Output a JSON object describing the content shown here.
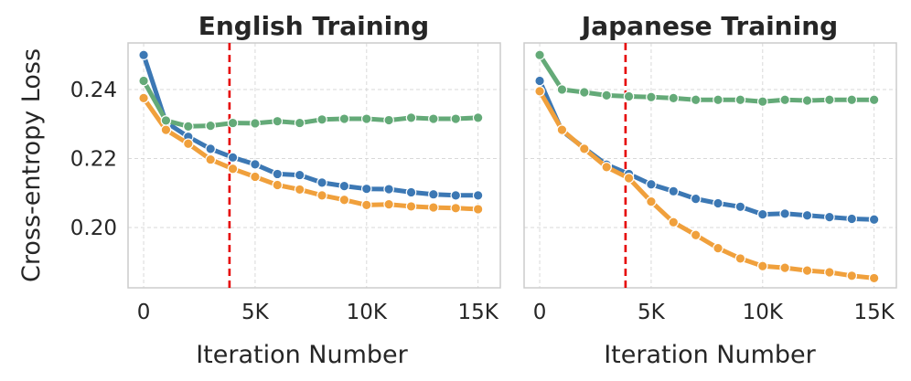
{
  "chart_data": [
    {
      "type": "line",
      "title": "English Training",
      "xlabel": "Iteration Number",
      "ylabel": "Cross-entropy Loss",
      "xlim": [
        -700,
        16000
      ],
      "ylim": [
        0.1825,
        0.2535
      ],
      "xticks": [
        0,
        5000,
        10000,
        15000
      ],
      "xtick_labels": [
        "0",
        "5K",
        "10K",
        "15K"
      ],
      "yticks": [
        0.2,
        0.22,
        0.24
      ],
      "ytick_labels": [
        "0.20",
        "0.22",
        "0.24"
      ],
      "vline_x": 3850,
      "grid": true,
      "series": [
        {
          "color": "#3c78b4",
          "x": [
            0,
            1000,
            2000,
            3000,
            4000,
            5000,
            6000,
            7000,
            8000,
            9000,
            10000,
            11000,
            12000,
            13000,
            14000,
            15000
          ],
          "values": [
            0.25,
            0.2305,
            0.2263,
            0.2228,
            0.2203,
            0.2183,
            0.2155,
            0.2152,
            0.213,
            0.212,
            0.2112,
            0.2111,
            0.2102,
            0.2096,
            0.2093,
            0.2093
          ]
        },
        {
          "color": "#f0a03c",
          "x": [
            0,
            1000,
            2000,
            3000,
            4000,
            5000,
            6000,
            7000,
            8000,
            9000,
            10000,
            11000,
            12000,
            13000,
            14000,
            15000
          ],
          "values": [
            0.2375,
            0.2283,
            0.2243,
            0.2197,
            0.217,
            0.2147,
            0.2123,
            0.211,
            0.2093,
            0.208,
            0.2065,
            0.2067,
            0.2061,
            0.2058,
            0.2056,
            0.2053
          ]
        },
        {
          "color": "#64aa78",
          "x": [
            0,
            1000,
            2000,
            3000,
            4000,
            5000,
            6000,
            7000,
            8000,
            9000,
            10000,
            11000,
            12000,
            13000,
            14000,
            15000
          ],
          "values": [
            0.2425,
            0.231,
            0.2293,
            0.2295,
            0.2303,
            0.2302,
            0.2308,
            0.2303,
            0.2313,
            0.2315,
            0.2315,
            0.2311,
            0.2318,
            0.2315,
            0.2315,
            0.2318
          ]
        }
      ]
    },
    {
      "type": "line",
      "title": "Japanese Training",
      "xlabel": "Iteration Number",
      "ylabel": "",
      "xlim": [
        -700,
        16000
      ],
      "ylim": [
        0.1825,
        0.2535
      ],
      "xticks": [
        0,
        5000,
        10000,
        15000
      ],
      "xtick_labels": [
        "0",
        "5K",
        "10K",
        "15K"
      ],
      "yticks": [
        0.2,
        0.22,
        0.24
      ],
      "ytick_labels": [],
      "vline_x": 3850,
      "grid": true,
      "series": [
        {
          "color": "#3c78b4",
          "x": [
            0,
            1000,
            2000,
            3000,
            4000,
            5000,
            6000,
            7000,
            8000,
            9000,
            10000,
            11000,
            12000,
            13000,
            14000,
            15000
          ],
          "values": [
            0.2425,
            0.228,
            0.223,
            0.2182,
            0.2155,
            0.2125,
            0.2105,
            0.2083,
            0.207,
            0.206,
            0.2038,
            0.204,
            0.2035,
            0.203,
            0.2025,
            0.2023
          ]
        },
        {
          "color": "#f0a03c",
          "x": [
            0,
            1000,
            2000,
            3000,
            4000,
            5000,
            6000,
            7000,
            8000,
            9000,
            10000,
            11000,
            12000,
            13000,
            14000,
            15000
          ],
          "values": [
            0.2395,
            0.2283,
            0.2228,
            0.2175,
            0.2143,
            0.2075,
            0.2015,
            0.1978,
            0.194,
            0.191,
            0.1888,
            0.1883,
            0.1875,
            0.187,
            0.186,
            0.1853
          ]
        },
        {
          "color": "#64aa78",
          "x": [
            0,
            1000,
            2000,
            3000,
            4000,
            5000,
            6000,
            7000,
            8000,
            9000,
            10000,
            11000,
            12000,
            13000,
            14000,
            15000
          ],
          "values": [
            0.25,
            0.24,
            0.2392,
            0.2383,
            0.238,
            0.2378,
            0.2375,
            0.237,
            0.237,
            0.237,
            0.2365,
            0.237,
            0.2368,
            0.237,
            0.237,
            0.237
          ]
        }
      ]
    }
  ]
}
